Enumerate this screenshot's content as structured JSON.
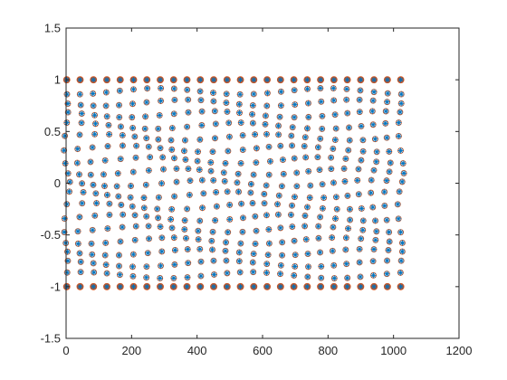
{
  "chart_data": {
    "type": "scatter",
    "title": "",
    "xlabel": "",
    "ylabel": "",
    "xlim": [
      0,
      1200
    ],
    "ylim": [
      -1.5,
      1.5
    ],
    "grid": false,
    "legend": "none",
    "x_ticks": [
      0,
      200,
      400,
      600,
      800,
      1000,
      1200
    ],
    "y_ticks": [
      -1.5,
      -1,
      -0.5,
      0,
      0.5,
      1,
      1.5
    ],
    "x_tick_labels": [
      "0",
      "200",
      "400",
      "600",
      "800",
      "1000",
      "1200"
    ],
    "y_tick_labels": [
      "-1.5",
      "-1",
      "-0.5",
      "0",
      "0.5",
      "1",
      "1.5"
    ],
    "series": [
      {
        "marker": "asterisk",
        "color": "#0072bd",
        "description_x_range": [
          0,
          1024
        ],
        "x_period": 40,
        "y_range": [
          -1,
          1
        ]
      },
      {
        "marker": "circle",
        "color": "#d95319",
        "description_x_range": [
          0,
          1024
        ],
        "x_period": 40,
        "y_range": [
          -1,
          1
        ]
      }
    ]
  }
}
